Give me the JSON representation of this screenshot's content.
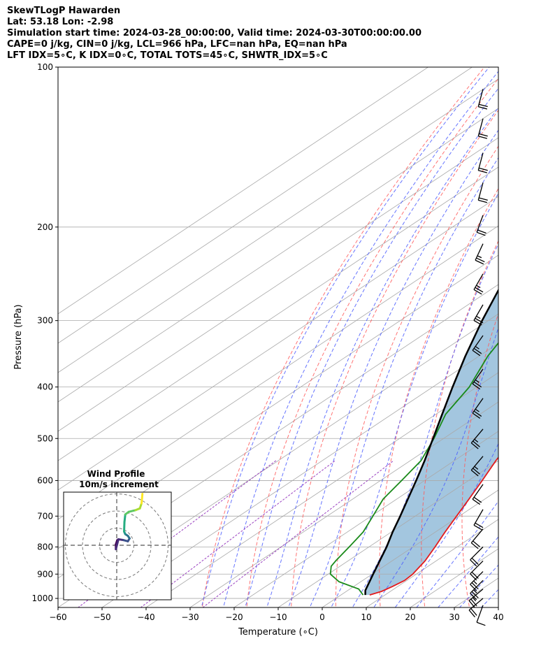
{
  "header": {
    "lines": [
      "SkewTLogP Hawarden",
      "Lat: 53.18   Lon: -2.98",
      "Simulation start time: 2024-03-28_00:00:00, Valid time: 2024-03-30T00:00:00.00",
      "CAPE=0 j/kg, CIN=0 j/kg, LCL=966 hPa, LFC=nan hPa, EQ=nan hPa",
      "LFT IDX=5∘C, K IDX=0∘C, TOTAL TOTS=45∘C, SHWTR_IDX=5∘C"
    ]
  },
  "chart_data": {
    "type": "line",
    "title": "SkewTLogP Hawarden",
    "xlabel": "Temperature (∘C)",
    "ylabel": "Pressure (hPa)",
    "x_ticks": [
      -60,
      -50,
      -40,
      -30,
      -20,
      -10,
      0,
      10,
      20,
      30,
      40
    ],
    "y_ticks": [
      100,
      200,
      300,
      400,
      500,
      600,
      700,
      800,
      900,
      1000
    ],
    "xlim": [
      -60,
      40
    ],
    "ylim": [
      1040,
      100
    ],
    "y_scale": "log",
    "grid": true,
    "colors": {
      "temperature": "#e41a1c",
      "dewpoint": "#1a8a1a",
      "parcel": "#000000",
      "shading": "#a3c6df",
      "dry_adiabats": "#ff5a5a",
      "moist_adiabats": "#4a5cff",
      "mixing_ratio": "#9a40c0",
      "isotherms": "#aaaaaa"
    },
    "series": [
      {
        "key": "temperature",
        "points": [
          {
            "p": 985,
            "t": 6.5
          },
          {
            "p": 970,
            "t": 8.0
          },
          {
            "p": 950,
            "t": 8.8
          },
          {
            "p": 925,
            "t": 9.5
          },
          {
            "p": 900,
            "t": 9.2
          },
          {
            "p": 850,
            "t": 7.5
          },
          {
            "p": 800,
            "t": 5.0
          },
          {
            "p": 750,
            "t": 2.2
          },
          {
            "p": 700,
            "t": -0.6
          },
          {
            "p": 650,
            "t": -3.6
          },
          {
            "p": 600,
            "t": -6.9
          },
          {
            "p": 550,
            "t": -10.6
          },
          {
            "p": 500,
            "t": -14.0
          },
          {
            "p": 450,
            "t": -17.9
          },
          {
            "p": 400,
            "t": -22.3
          },
          {
            "p": 350,
            "t": -28.6
          },
          {
            "p": 300,
            "t": -36.0
          },
          {
            "p": 270,
            "t": -41.5
          },
          {
            "p": 250,
            "t": -45.0
          },
          {
            "p": 240,
            "t": -47.0
          },
          {
            "p": 225,
            "t": -49.0
          },
          {
            "p": 200,
            "t": -51.5
          },
          {
            "p": 185,
            "t": -52.5
          },
          {
            "p": 170,
            "t": -54.0
          },
          {
            "p": 160,
            "t": -55.0
          },
          {
            "p": 150,
            "t": -56.0
          },
          {
            "p": 140,
            "t": -57.0
          },
          {
            "p": 130,
            "t": -58.0
          },
          {
            "p": 120,
            "t": -61.0
          },
          {
            "p": 110,
            "t": -63.0
          },
          {
            "p": 100,
            "t": -64.0
          }
        ]
      },
      {
        "key": "dewpoint",
        "points": [
          {
            "p": 985,
            "t": 5.0
          },
          {
            "p": 960,
            "t": 2.0
          },
          {
            "p": 930,
            "t": -5.0
          },
          {
            "p": 900,
            "t": -9.5
          },
          {
            "p": 870,
            "t": -12.0
          },
          {
            "p": 850,
            "t": -12.8
          },
          {
            "p": 800,
            "t": -14.5
          },
          {
            "p": 750,
            "t": -16.4
          },
          {
            "p": 700,
            "t": -19.6
          },
          {
            "p": 650,
            "t": -23.1
          },
          {
            "p": 600,
            "t": -25.2
          },
          {
            "p": 550,
            "t": -27.6
          },
          {
            "p": 500,
            "t": -32.2
          },
          {
            "p": 450,
            "t": -37.8
          },
          {
            "p": 400,
            "t": -41.7
          },
          {
            "p": 350,
            "t": -48.0
          },
          {
            "p": 300,
            "t": -53.6
          },
          {
            "p": 270,
            "t": -56.5
          },
          {
            "p": 250,
            "t": -59.8
          },
          {
            "p": 230,
            "t": -63.4
          },
          {
            "p": 200,
            "t": -69.0
          },
          {
            "p": 190,
            "t": -72.0
          },
          {
            "p": 180,
            "t": -73.5
          },
          {
            "p": 170,
            "t": -73.5
          },
          {
            "p": 150,
            "t": -73.3
          },
          {
            "p": 130,
            "t": -73.3
          },
          {
            "p": 110,
            "t": -73.5
          },
          {
            "p": 100,
            "t": -74.0
          }
        ]
      },
      {
        "key": "parcel",
        "points": [
          {
            "p": 985,
            "t": 5.5
          },
          {
            "p": 966,
            "t": 4.0
          },
          {
            "p": 900,
            "t": 0.2
          },
          {
            "p": 850,
            "t": -2.8
          },
          {
            "p": 800,
            "t": -6.0
          },
          {
            "p": 750,
            "t": -9.7
          },
          {
            "p": 700,
            "t": -13.4
          },
          {
            "p": 650,
            "t": -17.5
          },
          {
            "p": 600,
            "t": -21.9
          },
          {
            "p": 550,
            "t": -26.8
          },
          {
            "p": 500,
            "t": -32.4
          },
          {
            "p": 450,
            "t": -38.6
          },
          {
            "p": 400,
            "t": -45.5
          },
          {
            "p": 350,
            "t": -53.1
          },
          {
            "p": 300,
            "t": -61.4
          },
          {
            "p": 250,
            "t": -70.6
          },
          {
            "p": 200,
            "t": -80.0
          },
          {
            "p": 150,
            "t": -91.8
          },
          {
            "p": 100,
            "t": -106.0
          }
        ]
      }
    ],
    "wind_barbs": [
      {
        "p": 1030,
        "speed": 10,
        "dir": 200
      },
      {
        "p": 1000,
        "speed": 20,
        "dir": 230
      },
      {
        "p": 960,
        "speed": 25,
        "dir": 230
      },
      {
        "p": 925,
        "speed": 25,
        "dir": 225
      },
      {
        "p": 890,
        "speed": 25,
        "dir": 225
      },
      {
        "p": 850,
        "speed": 20,
        "dir": 225
      },
      {
        "p": 800,
        "speed": 20,
        "dir": 225
      },
      {
        "p": 740,
        "speed": 20,
        "dir": 220
      },
      {
        "p": 680,
        "speed": 20,
        "dir": 210
      },
      {
        "p": 610,
        "speed": 20,
        "dir": 215
      },
      {
        "p": 540,
        "speed": 25,
        "dir": 220
      },
      {
        "p": 480,
        "speed": 25,
        "dir": 220
      },
      {
        "p": 420,
        "speed": 25,
        "dir": 215
      },
      {
        "p": 370,
        "speed": 25,
        "dir": 215
      },
      {
        "p": 320,
        "speed": 25,
        "dir": 215
      },
      {
        "p": 280,
        "speed": 25,
        "dir": 210
      },
      {
        "p": 245,
        "speed": 25,
        "dir": 210
      },
      {
        "p": 215,
        "speed": 25,
        "dir": 205
      },
      {
        "p": 190,
        "speed": 20,
        "dir": 200
      },
      {
        "p": 165,
        "speed": 20,
        "dir": 195
      },
      {
        "p": 145,
        "speed": 20,
        "dir": 195
      },
      {
        "p": 125,
        "speed": 20,
        "dir": 195
      },
      {
        "p": 110,
        "speed": 20,
        "dir": 195
      }
    ],
    "hodograph": {
      "title": "Wind Profile",
      "subtitle": "10m/s increment",
      "rings_ms": [
        10,
        20,
        30
      ],
      "track": [
        {
          "u": 0.3,
          "v": 3.0
        },
        {
          "u": -0.5,
          "v": 0.5
        },
        {
          "u": -0.5,
          "v": -2.3
        },
        {
          "u": 1.0,
          "v": 3.5
        },
        {
          "u": 4.0,
          "v": 3.0
        },
        {
          "u": 6.5,
          "v": 2.3
        },
        {
          "u": 7.5,
          "v": 4.0
        },
        {
          "u": 6.5,
          "v": 5.5
        },
        {
          "u": 5.0,
          "v": 6.5
        },
        {
          "u": 4.3,
          "v": 8.0
        },
        {
          "u": 4.5,
          "v": 13.5
        },
        {
          "u": 5.0,
          "v": 18.0
        },
        {
          "u": 7.0,
          "v": 19.5
        },
        {
          "u": 11.0,
          "v": 20.5
        },
        {
          "u": 13.5,
          "v": 21.5
        },
        {
          "u": 14.5,
          "v": 24.5
        },
        {
          "u": 15.0,
          "v": 30.0
        }
      ]
    }
  }
}
